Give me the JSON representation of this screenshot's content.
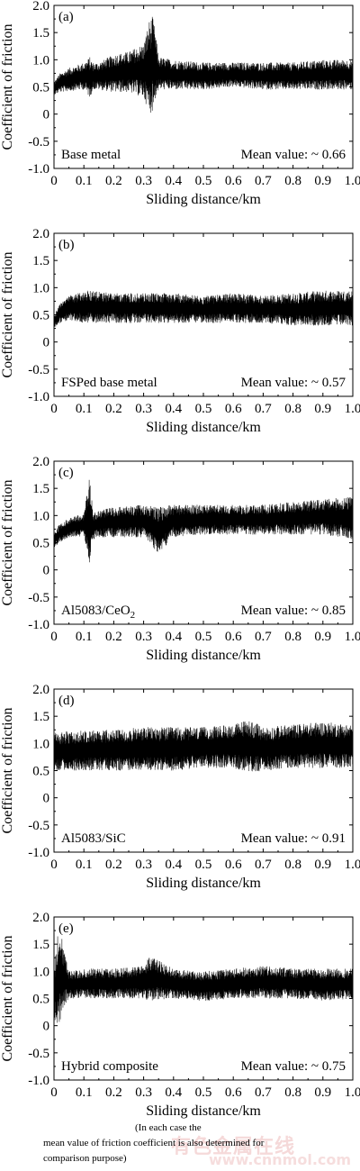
{
  "chart_data": [
    {
      "type": "line",
      "panel_label": "(a)",
      "sample_label": "Base metal",
      "mean_label": "Mean value: ~ 0.66",
      "mean": 0.66,
      "xlabel": "Sliding distance/km",
      "ylabel": "Coefficient of friction",
      "xlim": [
        0,
        1.0
      ],
      "ylim": [
        -1.0,
        2.0
      ],
      "x_ticks": [
        "0",
        "0.1",
        "0.2",
        "0.3",
        "0.4",
        "0.5",
        "0.6",
        "0.7",
        "0.8",
        "0.9",
        "1.0"
      ],
      "y_ticks": [
        "2.0",
        "1.5",
        "1.0",
        "0.5",
        "0",
        "-0.5",
        "-1.0"
      ],
      "series": [
        {
          "x": [
            0,
            0.02,
            0.05,
            0.1,
            0.12,
            0.13,
            0.15,
            0.2,
            0.25,
            0.3,
            0.32,
            0.33,
            0.34,
            0.35,
            0.4,
            0.5,
            0.6,
            0.7,
            0.8,
            0.9,
            1.0
          ],
          "y_low": [
            0.35,
            0.4,
            0.42,
            0.45,
            0.3,
            0.45,
            0.45,
            0.4,
            0.4,
            0.3,
            0.0,
            0.05,
            0.3,
            0.45,
            0.45,
            0.45,
            0.5,
            0.45,
            0.45,
            0.45,
            0.45
          ],
          "y_high": [
            0.6,
            0.75,
            0.85,
            0.95,
            1.05,
            0.95,
            0.95,
            1.1,
            1.15,
            1.3,
            1.75,
            1.8,
            1.5,
            1.05,
            1.0,
            0.95,
            0.95,
            0.95,
            0.95,
            1.0,
            1.0
          ]
        }
      ]
    },
    {
      "type": "line",
      "panel_label": "(b)",
      "sample_label": "FSPed base metal",
      "mean_label": "Mean value: ~ 0.57",
      "mean": 0.57,
      "xlabel": "Sliding distance/km",
      "ylabel": "Coefficient of friction",
      "xlim": [
        0,
        1.0
      ],
      "ylim": [
        -1.0,
        2.0
      ],
      "x_ticks": [
        "0",
        "0.1",
        "0.2",
        "0.3",
        "0.4",
        "0.5",
        "0.6",
        "0.7",
        "0.8",
        "0.9",
        "1.0"
      ],
      "y_ticks": [
        "2.0",
        "1.5",
        "1.0",
        "0.5",
        "0",
        "-0.5",
        "-1.0"
      ],
      "series": [
        {
          "x": [
            0,
            0.02,
            0.05,
            0.1,
            0.2,
            0.3,
            0.4,
            0.5,
            0.6,
            0.7,
            0.8,
            0.9,
            1.0
          ],
          "y_low": [
            0.25,
            0.35,
            0.4,
            0.35,
            0.35,
            0.35,
            0.35,
            0.35,
            0.35,
            0.35,
            0.3,
            0.3,
            0.3
          ],
          "y_high": [
            0.5,
            0.7,
            0.85,
            0.95,
            0.9,
            0.9,
            0.9,
            0.85,
            0.9,
            0.85,
            0.9,
            0.95,
            0.95
          ]
        }
      ]
    },
    {
      "type": "line",
      "panel_label": "(c)",
      "sample_label": "Al5083/CeO",
      "sample_sub": "2",
      "mean_label": "Mean value: ~ 0.85",
      "mean": 0.85,
      "xlabel": "Sliding distance/km",
      "ylabel": "Coefficient of friction",
      "xlim": [
        0,
        1.0
      ],
      "ylim": [
        -1.0,
        2.0
      ],
      "x_ticks": [
        "0",
        "0.1",
        "0.2",
        "0.3",
        "0.4",
        "0.5",
        "0.6",
        "0.7",
        "0.8",
        "0.9",
        "1.0"
      ],
      "y_ticks": [
        "2.0",
        "1.5",
        "1.0",
        "0.5",
        "0",
        "-0.5",
        "-1.0"
      ],
      "series": [
        {
          "x": [
            0,
            0.02,
            0.05,
            0.1,
            0.12,
            0.13,
            0.15,
            0.2,
            0.3,
            0.35,
            0.4,
            0.5,
            0.6,
            0.7,
            0.8,
            0.9,
            1.0
          ],
          "y_low": [
            0.4,
            0.5,
            0.6,
            0.6,
            0.05,
            0.55,
            0.6,
            0.6,
            0.6,
            0.3,
            0.6,
            0.65,
            0.65,
            0.65,
            0.65,
            0.65,
            0.55
          ],
          "y_high": [
            0.7,
            0.85,
            0.95,
            1.05,
            1.75,
            1.05,
            1.1,
            1.15,
            1.2,
            1.15,
            1.2,
            1.2,
            1.2,
            1.2,
            1.25,
            1.3,
            1.35
          ]
        }
      ]
    },
    {
      "type": "line",
      "panel_label": "(d)",
      "sample_label": "Al5083/SiC",
      "mean_label": "Mean value: ~ 0.91",
      "mean": 0.91,
      "xlabel": "Sliding distance/km",
      "ylabel": "Coefficient of friction",
      "xlim": [
        0,
        1.0
      ],
      "ylim": [
        -1.0,
        2.0
      ],
      "x_ticks": [
        "0",
        "0.1",
        "0.2",
        "0.3",
        "0.4",
        "0.5",
        "0.6",
        "0.7",
        "0.8",
        "0.9",
        "1.0"
      ],
      "y_ticks": [
        "2.0",
        "1.5",
        "1.0",
        "0.5",
        "0",
        "-0.5",
        "-1.0"
      ],
      "series": [
        {
          "x": [
            0,
            0.1,
            0.2,
            0.3,
            0.4,
            0.5,
            0.6,
            0.65,
            0.7,
            0.8,
            0.9,
            1.0
          ],
          "y_low": [
            0.5,
            0.5,
            0.5,
            0.5,
            0.5,
            0.55,
            0.55,
            0.45,
            0.5,
            0.55,
            0.55,
            0.55
          ],
          "y_high": [
            1.2,
            1.25,
            1.25,
            1.3,
            1.3,
            1.3,
            1.35,
            1.45,
            1.3,
            1.35,
            1.4,
            1.35
          ]
        }
      ]
    },
    {
      "type": "line",
      "panel_label": "(e)",
      "sample_label": "Hybrid composite",
      "mean_label": "Mean value: ~ 0.75",
      "mean": 0.75,
      "xlabel": "Sliding distance/km",
      "ylabel": "Coefficient of friction",
      "xlim": [
        0,
        1.0
      ],
      "ylim": [
        -1.0,
        2.0
      ],
      "x_ticks": [
        "0",
        "0.1",
        "0.2",
        "0.3",
        "0.4",
        "0.5",
        "0.6",
        "0.7",
        "0.8",
        "0.9",
        "1.0"
      ],
      "y_ticks": [
        "2.0",
        "1.5",
        "1.0",
        "0.5",
        "0",
        "-0.5",
        "-1.0"
      ],
      "series": [
        {
          "x": [
            0,
            0.01,
            0.02,
            0.03,
            0.05,
            0.1,
            0.2,
            0.3,
            0.32,
            0.4,
            0.5,
            0.6,
            0.7,
            0.8,
            0.9,
            1.0
          ],
          "y_low": [
            0.1,
            0.05,
            0.05,
            0.3,
            0.5,
            0.5,
            0.5,
            0.5,
            0.45,
            0.5,
            0.45,
            0.5,
            0.5,
            0.5,
            0.45,
            0.5
          ],
          "y_high": [
            1.0,
            1.6,
            1.8,
            1.5,
            1.0,
            1.05,
            1.05,
            1.1,
            1.3,
            1.05,
            1.0,
            1.05,
            1.1,
            1.05,
            1.05,
            1.05
          ]
        }
      ]
    }
  ],
  "caption": {
    "line1": "(In each case the",
    "line2": "mean value of friction coefficient is also determined for",
    "line3": "comparison purpose)"
  },
  "watermark": {
    "text1": "有色金属在线",
    "text2": "www.cnnmol.com"
  }
}
